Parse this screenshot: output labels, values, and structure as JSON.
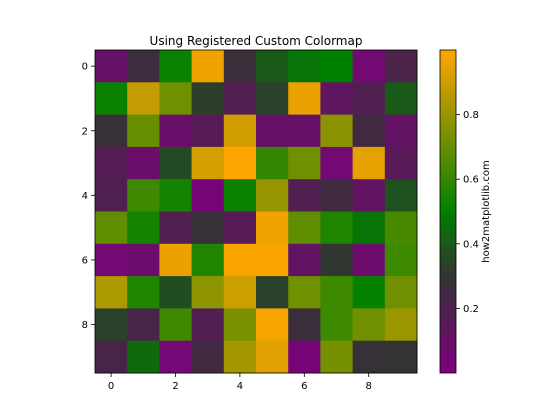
{
  "chart_data": {
    "type": "heatmap",
    "title": "Using Registered Custom Colormap",
    "xlabel": "",
    "ylabel": "",
    "colorbar_label": "how2matplotlib.com",
    "rows": 10,
    "cols": 10,
    "x_ticks": [
      0,
      2,
      4,
      6,
      8
    ],
    "y_ticks": [
      0,
      2,
      4,
      6,
      8
    ],
    "colorbar_ticks": [
      0.2,
      0.4,
      0.6,
      0.8
    ],
    "colorbar_range": [
      0.0,
      1.0
    ],
    "colormap": {
      "name": "custom",
      "stops": [
        {
          "value": 0.0,
          "color": "#800080"
        },
        {
          "value": 0.3,
          "color": "#333333"
        },
        {
          "value": 0.5,
          "color": "#008000"
        },
        {
          "value": 1.0,
          "color": "#FFA500"
        }
      ]
    },
    "values": [
      [
        0.1,
        0.26,
        0.52,
        0.97,
        0.27,
        0.4,
        0.47,
        0.5,
        0.05,
        0.21
      ],
      [
        0.52,
        0.88,
        0.72,
        0.33,
        0.18,
        0.34,
        0.96,
        0.13,
        0.18,
        0.4
      ],
      [
        0.28,
        0.7,
        0.09,
        0.16,
        0.91,
        0.1,
        0.1,
        0.77,
        0.24,
        0.11
      ],
      [
        0.17,
        0.08,
        0.36,
        0.92,
        1.0,
        0.6,
        0.72,
        0.05,
        0.95,
        0.15
      ],
      [
        0.19,
        0.62,
        0.54,
        0.03,
        0.52,
        0.79,
        0.18,
        0.25,
        0.12,
        0.38
      ],
      [
        0.69,
        0.54,
        0.18,
        0.29,
        0.16,
        0.97,
        0.69,
        0.56,
        0.47,
        0.64
      ],
      [
        0.05,
        0.07,
        0.96,
        0.56,
        0.99,
        0.99,
        0.12,
        0.31,
        0.07,
        0.62
      ],
      [
        0.84,
        0.56,
        0.37,
        0.78,
        0.9,
        0.34,
        0.72,
        0.62,
        0.51,
        0.72
      ],
      [
        0.34,
        0.22,
        0.62,
        0.18,
        0.74,
        0.98,
        0.27,
        0.62,
        0.72,
        0.8
      ],
      [
        0.22,
        0.44,
        0.04,
        0.24,
        0.82,
        0.94,
        0.03,
        0.73,
        0.29,
        0.3
      ]
    ]
  }
}
